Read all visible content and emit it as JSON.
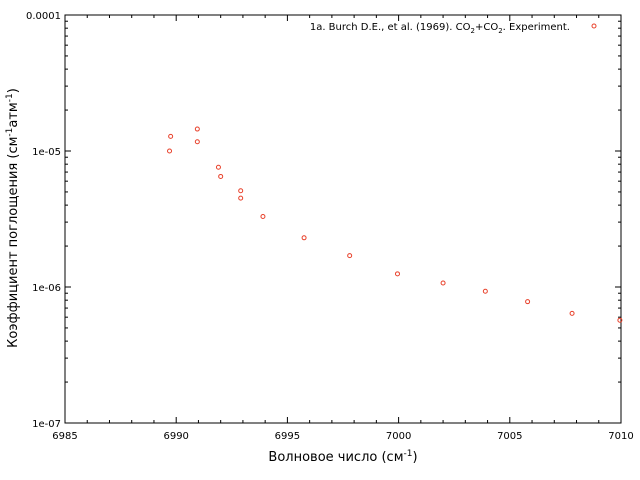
{
  "chart_data": {
    "type": "scatter",
    "title": "",
    "xlabel": "Волновое число (см",
    "xlabel_sup": "-1",
    "xlabel_tail": ")",
    "ylabel": "Коэффициент поглощения (см",
    "ylabel_sup1": "-1",
    "ylabel_mid": "атм",
    "ylabel_sup2": "-1",
    "ylabel_tail": ")",
    "xlim": [
      6985,
      7010
    ],
    "ylim": [
      1e-07,
      0.0001
    ],
    "yscale": "log",
    "x_ticks": [
      6985,
      6990,
      6995,
      7000,
      7005,
      7010
    ],
    "x_tick_labels": [
      "6985",
      "6990",
      "6995",
      "7000",
      "7005",
      "7010"
    ],
    "y_ticks": [
      0.0001,
      1e-05,
      1e-06,
      1e-07
    ],
    "y_tick_labels": [
      "0.0001",
      "1e-05",
      "1e-06",
      "1e-07"
    ],
    "grid": false,
    "legend_position": "top-right",
    "series": [
      {
        "name": "1a. Burch D.E., et al. (1969). CO2+CO2. Experiment.",
        "legend_parts": [
          "1a. Burch D.E., et al. (1969). CO",
          "2",
          "+CO",
          "2",
          ". Experiment."
        ],
        "color": "#e8402a",
        "marker": "circle-open",
        "points": [
          [
            6989.7,
            1e-05
          ],
          [
            6989.75,
            1.28e-05
          ],
          [
            6990.95,
            1.45e-05
          ],
          [
            6990.95,
            1.17e-05
          ],
          [
            6991.9,
            7.6e-06
          ],
          [
            6992.0,
            6.5e-06
          ],
          [
            6992.9,
            5.1e-06
          ],
          [
            6992.9,
            4.5e-06
          ],
          [
            6993.9,
            3.3e-06
          ],
          [
            6995.75,
            2.3e-06
          ],
          [
            6997.8,
            1.7e-06
          ],
          [
            6999.95,
            1.25e-06
          ],
          [
            7002.0,
            1.07e-06
          ],
          [
            7003.9,
            9.3e-07
          ],
          [
            7005.8,
            7.8e-07
          ],
          [
            7007.8,
            6.4e-07
          ],
          [
            7009.95,
            5.7e-07
          ]
        ]
      }
    ]
  }
}
